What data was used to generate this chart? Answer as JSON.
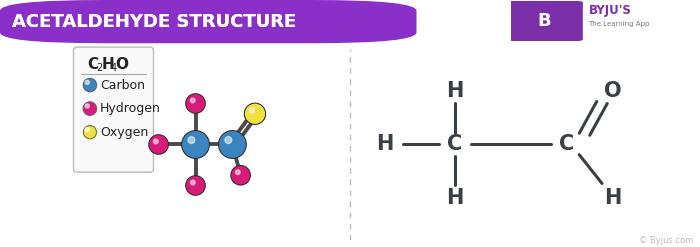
{
  "title": "ACETALDEHYDE STRUCTURE",
  "title_bg": "#8B2FC9",
  "title_color": "#FFFFFF",
  "bg_color": "#FFFFFF",
  "legend_items": [
    {
      "label": "Carbon",
      "color": "#3a85c0"
    },
    {
      "label": "Hydrogen",
      "color": "#d81b7a"
    },
    {
      "label": "Oxygen",
      "color": "#f0e040"
    }
  ],
  "carbon_color": "#3a85c0",
  "hydrogen_color": "#d81b7a",
  "oxygen_color": "#f0e040",
  "bond_color": "#4a4a4a",
  "divider_color": "#bbbbbb",
  "struct_text_color": "#3a3f45",
  "byju_purple": "#7B2FA8"
}
